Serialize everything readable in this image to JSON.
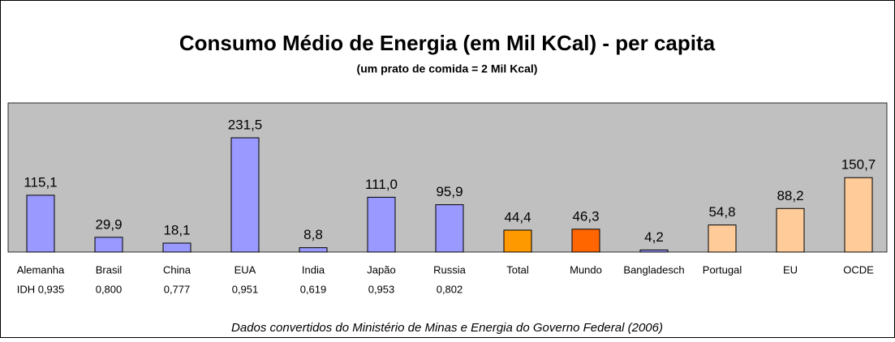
{
  "chart_data": {
    "type": "bar",
    "title": "Consumo Médio de Energia (em Mil KCal) - per capita",
    "subtitle": "(um prato de comida = 2 Mil Kcal)",
    "footnote": "Dados convertidos do Ministério de Minas e Energia do Governo Federal (2006)",
    "categories": [
      "Alemanha",
      "Brasil",
      "China",
      "EUA",
      "India",
      "Japão",
      "Russia",
      "Total",
      "Mundo",
      "Bangladesch",
      "Portugal",
      "EU",
      "OCDE"
    ],
    "idh_labels": [
      "IDH 0,935",
      "0,800",
      "0,777",
      "0,951",
      "0,619",
      "0,953",
      "0,802",
      null,
      null,
      null,
      null,
      null,
      null
    ],
    "values": [
      115.1,
      29.9,
      18.1,
      231.5,
      8.8,
      111.0,
      95.9,
      44.4,
      46.3,
      4.2,
      54.8,
      88.2,
      150.7
    ],
    "value_labels": [
      "115,1",
      "29,9",
      "18,1",
      "231,5",
      "8,8",
      "111,0",
      "95,9",
      "44,4",
      "46,3",
      "4,2",
      "54,8",
      "88,2",
      "150,7"
    ],
    "colors": [
      "#9999ff",
      "#9999ff",
      "#9999ff",
      "#9999ff",
      "#9999ff",
      "#9999ff",
      "#9999ff",
      "#ff9900",
      "#ff6600",
      "#9999ff",
      "#ffcc99",
      "#ffcc99",
      "#ffcc99"
    ]
  }
}
